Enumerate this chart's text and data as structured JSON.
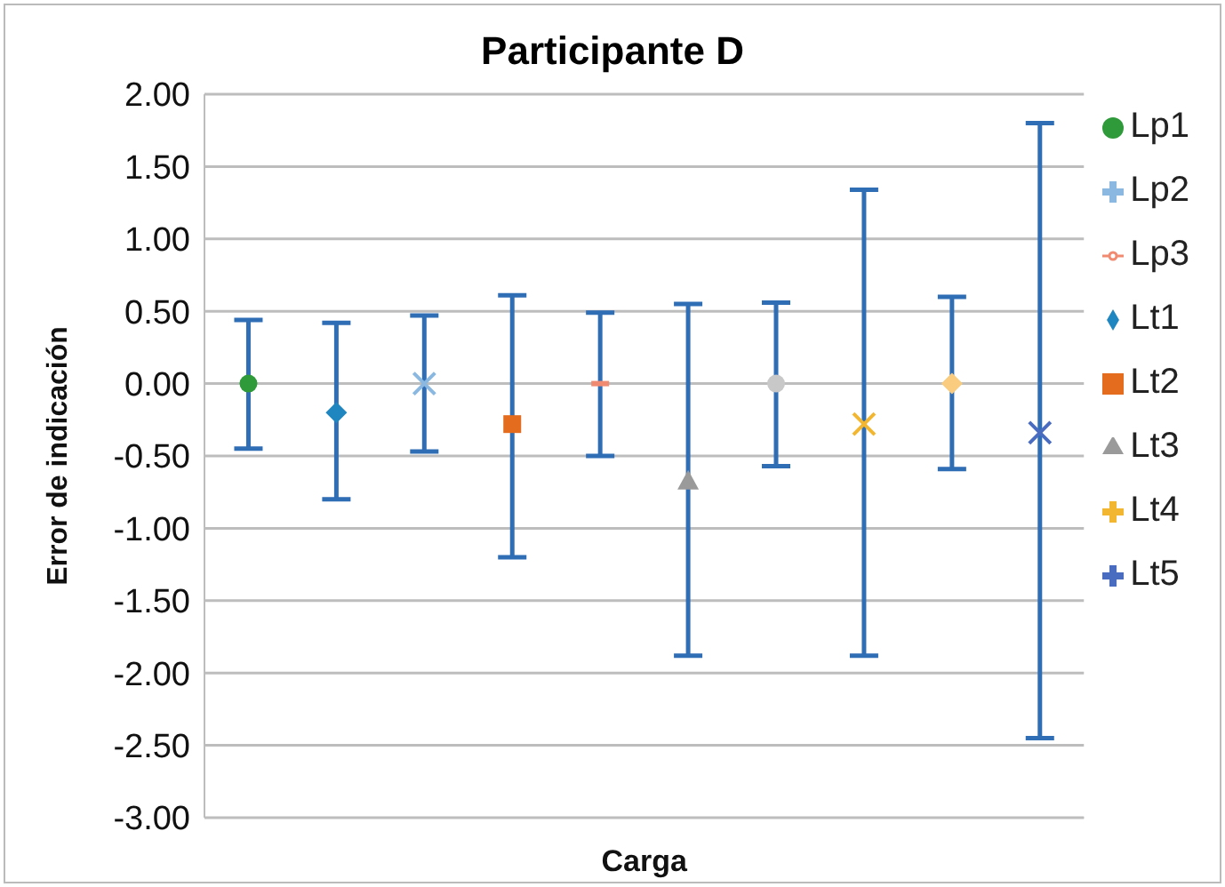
{
  "chart_data": {
    "type": "scatter",
    "title": "Participante D",
    "xlabel": "Carga",
    "ylabel": "Error de indicación",
    "categories": [
      null,
      null,
      null,
      null,
      null,
      null,
      null,
      null,
      null,
      null
    ],
    "ylim": [
      -3,
      2
    ],
    "yticks": [
      {
        "value": -3,
        "label": "-3.00"
      },
      {
        "value": -2.5,
        "label": "-2.50"
      },
      {
        "value": -2,
        "label": "-2.00"
      },
      {
        "value": -1.5,
        "label": "-1.50"
      },
      {
        "value": -1,
        "label": "-1.00"
      },
      {
        "value": -0.5,
        "label": "-0.50"
      },
      {
        "value": 0,
        "label": "0.00"
      },
      {
        "value": 0.5,
        "label": "0.50"
      },
      {
        "value": 1,
        "label": "1.00"
      },
      {
        "value": 1.5,
        "label": "1.50"
      },
      {
        "value": 2,
        "label": "2.00"
      }
    ],
    "grid": "y",
    "legend": "top right",
    "series": [
      {
        "name": "Lt1",
        "color": "#1f86c0",
        "marker": "diamond",
        "values": [
          null,
          -0.2,
          null,
          null,
          null,
          null,
          null,
          null,
          null,
          null
        ],
        "errors": [
          null,
          [
            -0.8,
            0.42
          ],
          null,
          null,
          null,
          null,
          null,
          null,
          null,
          null
        ]
      },
      {
        "name": "Lt2",
        "color": "#e36c1e",
        "marker": "square",
        "values": [
          null,
          null,
          null,
          -0.28,
          null,
          null,
          null,
          null,
          null,
          null
        ],
        "errors": [
          null,
          null,
          null,
          [
            -1.2,
            0.61
          ],
          null,
          null,
          null,
          null,
          null,
          null
        ]
      },
      {
        "name": "Lt3",
        "color": "#9a9a9a",
        "marker": "triangle",
        "values": [
          null,
          null,
          null,
          null,
          null,
          -0.67,
          null,
          null,
          null,
          null
        ],
        "errors": [
          null,
          null,
          null,
          null,
          null,
          [
            -1.88,
            0.55
          ],
          null,
          null,
          null,
          null
        ]
      },
      {
        "name": "Lt4",
        "color": "#f2b630",
        "marker": "cross",
        "values": [
          null,
          null,
          null,
          null,
          null,
          null,
          null,
          -0.28,
          null,
          null
        ],
        "errors": [
          null,
          null,
          null,
          null,
          null,
          null,
          null,
          [
            -1.88,
            1.34
          ],
          null,
          null
        ]
      },
      {
        "name": "Lt5",
        "color": "#4a6cc0",
        "marker": "cross",
        "values": [
          null,
          null,
          null,
          null,
          null,
          null,
          null,
          null,
          null,
          -0.34
        ],
        "errors": [
          null,
          null,
          null,
          null,
          null,
          null,
          null,
          null,
          null,
          [
            -2.45,
            1.8
          ]
        ]
      },
      {
        "name": "Lp1",
        "color": "#2e9a3a",
        "marker": "circle",
        "values": [
          0,
          null,
          null,
          null,
          null,
          null,
          null,
          null,
          null,
          null
        ],
        "errors": [
          [
            -0.45,
            0.44
          ],
          null,
          null,
          null,
          null,
          null,
          null,
          null,
          null,
          null
        ]
      },
      {
        "name": "Lp2",
        "color": "#8ab8e0",
        "marker": "cross",
        "values": [
          null,
          null,
          0,
          null,
          null,
          null,
          null,
          null,
          null,
          null
        ],
        "errors": [
          null,
          null,
          [
            -0.47,
            0.47
          ],
          null,
          null,
          null,
          null,
          null,
          null,
          null
        ]
      },
      {
        "name": "Lp3",
        "color": "#f08a70",
        "values": [
          null,
          null,
          null,
          null,
          0,
          null,
          null,
          null,
          null,
          null
        ],
        "errors": [
          null,
          null,
          null,
          null,
          [
            -0.5,
            0.49
          ],
          null,
          null,
          null,
          null,
          null
        ]
      },
      {
        "color": "#c8c8c8",
        "marker": "circle",
        "values": [
          null,
          null,
          null,
          null,
          null,
          null,
          0,
          null,
          null,
          null
        ],
        "errors": [
          null,
          null,
          null,
          null,
          null,
          null,
          [
            -0.57,
            0.56
          ],
          null,
          null,
          null
        ]
      },
      {
        "color": "#f9cc80",
        "marker": "diamond",
        "values": [
          null,
          null,
          null,
          null,
          null,
          null,
          null,
          null,
          0,
          null
        ],
        "errors": [
          null,
          null,
          null,
          null,
          null,
          null,
          null,
          null,
          [
            -0.59,
            0.6
          ],
          null
        ]
      }
    ]
  }
}
